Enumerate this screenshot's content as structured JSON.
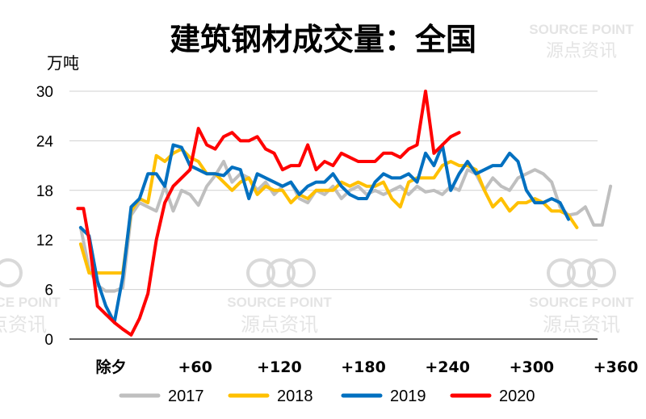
{
  "chart_data": {
    "type": "line",
    "title": "建筑钢材成交量：全国",
    "ylabel": "万吨",
    "ylim": [
      0,
      30
    ],
    "yticks": [
      0,
      6,
      12,
      18,
      24,
      30
    ],
    "xlim": [
      -32,
      362
    ],
    "xticks": [
      {
        "x": 0,
        "label": "除夕"
      },
      {
        "x": 60,
        "label": "+60"
      },
      {
        "x": 120,
        "label": "+120"
      },
      {
        "x": 180,
        "label": "+180"
      },
      {
        "x": 240,
        "label": "+240"
      },
      {
        "x": 300,
        "label": "+300"
      },
      {
        "x": 360,
        "label": "+360"
      }
    ],
    "grid": true,
    "legend": "bottom",
    "series": [
      {
        "name": "2017",
        "color": "#bfbfbf",
        "points": [
          [
            -24,
            13.5
          ],
          [
            -18,
            8.5
          ],
          [
            -12,
            6.5
          ],
          [
            -6,
            5.8
          ],
          [
            0,
            5.8
          ],
          [
            6,
            6.2
          ],
          [
            12,
            15.0
          ],
          [
            18,
            16.5
          ],
          [
            24,
            16.0
          ],
          [
            30,
            15.5
          ],
          [
            36,
            18.5
          ],
          [
            42,
            15.5
          ],
          [
            48,
            18.0
          ],
          [
            54,
            17.5
          ],
          [
            60,
            16.2
          ],
          [
            66,
            18.5
          ],
          [
            72,
            19.8
          ],
          [
            78,
            21.5
          ],
          [
            84,
            19.0
          ],
          [
            90,
            20.0
          ],
          [
            96,
            19.5
          ],
          [
            102,
            18.0
          ],
          [
            108,
            19.0
          ],
          [
            114,
            17.5
          ],
          [
            120,
            18.5
          ],
          [
            126,
            19.0
          ],
          [
            132,
            17.0
          ],
          [
            138,
            16.5
          ],
          [
            144,
            18.0
          ],
          [
            150,
            17.5
          ],
          [
            156,
            18.5
          ],
          [
            162,
            17.0
          ],
          [
            168,
            18.0
          ],
          [
            174,
            18.5
          ],
          [
            180,
            17.5
          ],
          [
            186,
            18.0
          ],
          [
            192,
            17.5
          ],
          [
            198,
            18.0
          ],
          [
            204,
            18.5
          ],
          [
            210,
            17.5
          ],
          [
            216,
            18.5
          ],
          [
            222,
            17.8
          ],
          [
            228,
            18.0
          ],
          [
            234,
            17.5
          ],
          [
            240,
            18.5
          ],
          [
            246,
            18.0
          ],
          [
            252,
            20.5
          ],
          [
            258,
            20.0
          ],
          [
            264,
            18.0
          ],
          [
            270,
            19.5
          ],
          [
            276,
            18.5
          ],
          [
            282,
            18.0
          ],
          [
            288,
            19.5
          ],
          [
            294,
            20.0
          ],
          [
            300,
            20.5
          ],
          [
            306,
            20.0
          ],
          [
            312,
            19.0
          ],
          [
            318,
            16.0
          ],
          [
            324,
            15.0
          ],
          [
            330,
            15.2
          ],
          [
            336,
            16.0
          ],
          [
            342,
            13.8
          ],
          [
            348,
            13.8
          ],
          [
            354,
            18.5
          ]
        ]
      },
      {
        "name": "2018",
        "color": "#ffc000",
        "points": [
          [
            -24,
            11.5
          ],
          [
            -18,
            8.0
          ],
          [
            -12,
            8.0
          ],
          [
            -6,
            8.0
          ],
          [
            0,
            8.0
          ],
          [
            6,
            8.0
          ],
          [
            12,
            15.5
          ],
          [
            18,
            17.0
          ],
          [
            24,
            16.5
          ],
          [
            30,
            22.2
          ],
          [
            36,
            21.5
          ],
          [
            42,
            22.5
          ],
          [
            48,
            23.0
          ],
          [
            54,
            22.0
          ],
          [
            60,
            21.5
          ],
          [
            66,
            20.0
          ],
          [
            72,
            20.0
          ],
          [
            78,
            19.0
          ],
          [
            84,
            18.0
          ],
          [
            90,
            19.0
          ],
          [
            96,
            19.5
          ],
          [
            102,
            17.5
          ],
          [
            108,
            18.5
          ],
          [
            114,
            18.0
          ],
          [
            120,
            18.0
          ],
          [
            126,
            16.5
          ],
          [
            132,
            17.5
          ],
          [
            138,
            17.0
          ],
          [
            144,
            18.0
          ],
          [
            150,
            18.0
          ],
          [
            156,
            18.0
          ],
          [
            162,
            19.0
          ],
          [
            168,
            18.5
          ],
          [
            174,
            19.0
          ],
          [
            180,
            18.5
          ],
          [
            186,
            18.5
          ],
          [
            192,
            19.0
          ],
          [
            198,
            17.0
          ],
          [
            204,
            16.0
          ],
          [
            210,
            19.0
          ],
          [
            216,
            19.5
          ],
          [
            222,
            19.5
          ],
          [
            228,
            19.5
          ],
          [
            234,
            21.0
          ],
          [
            240,
            21.5
          ],
          [
            246,
            21.0
          ],
          [
            252,
            21.0
          ],
          [
            258,
            20.5
          ],
          [
            264,
            18.0
          ],
          [
            270,
            16.0
          ],
          [
            276,
            17.0
          ],
          [
            282,
            15.5
          ],
          [
            288,
            16.5
          ],
          [
            294,
            16.5
          ],
          [
            300,
            17.0
          ],
          [
            306,
            16.5
          ],
          [
            312,
            15.5
          ],
          [
            318,
            15.5
          ],
          [
            324,
            15.0
          ],
          [
            330,
            13.5
          ]
        ]
      },
      {
        "name": "2019",
        "color": "#0070c0",
        "points": [
          [
            -24,
            13.5
          ],
          [
            -18,
            12.5
          ],
          [
            -12,
            7.0
          ],
          [
            -6,
            4.0
          ],
          [
            0,
            2.0
          ],
          [
            6,
            7.5
          ],
          [
            12,
            16.0
          ],
          [
            18,
            17.0
          ],
          [
            24,
            20.0
          ],
          [
            30,
            20.0
          ],
          [
            36,
            18.5
          ],
          [
            42,
            23.5
          ],
          [
            48,
            23.2
          ],
          [
            54,
            21.0
          ],
          [
            60,
            20.5
          ],
          [
            66,
            20.0
          ],
          [
            72,
            20.0
          ],
          [
            78,
            19.8
          ],
          [
            84,
            20.8
          ],
          [
            90,
            20.5
          ],
          [
            96,
            17.0
          ],
          [
            102,
            20.0
          ],
          [
            108,
            19.5
          ],
          [
            114,
            19.0
          ],
          [
            120,
            18.5
          ],
          [
            126,
            19.0
          ],
          [
            132,
            17.5
          ],
          [
            138,
            18.5
          ],
          [
            144,
            19.0
          ],
          [
            150,
            19.0
          ],
          [
            156,
            20.0
          ],
          [
            162,
            18.5
          ],
          [
            168,
            17.5
          ],
          [
            174,
            17.0
          ],
          [
            180,
            17.0
          ],
          [
            186,
            19.0
          ],
          [
            192,
            20.0
          ],
          [
            198,
            19.5
          ],
          [
            204,
            19.5
          ],
          [
            210,
            20.0
          ],
          [
            216,
            19.0
          ],
          [
            222,
            22.5
          ],
          [
            228,
            21.0
          ],
          [
            234,
            23.5
          ],
          [
            240,
            18.0
          ],
          [
            246,
            20.0
          ],
          [
            252,
            21.5
          ],
          [
            258,
            20.0
          ],
          [
            264,
            20.5
          ],
          [
            270,
            21.0
          ],
          [
            276,
            21.0
          ],
          [
            282,
            22.5
          ],
          [
            288,
            21.5
          ],
          [
            294,
            18.0
          ],
          [
            300,
            16.5
          ],
          [
            306,
            16.5
          ],
          [
            312,
            17.0
          ],
          [
            318,
            16.5
          ],
          [
            324,
            14.5
          ]
        ]
      },
      {
        "name": "2020",
        "color": "#ff0000",
        "points": [
          [
            -26,
            15.8
          ],
          [
            -22,
            15.8
          ],
          [
            -18,
            12.0
          ],
          [
            -12,
            4.0
          ],
          [
            -6,
            3.0
          ],
          [
            0,
            2.0
          ],
          [
            6,
            1.2
          ],
          [
            12,
            0.5
          ],
          [
            18,
            2.5
          ],
          [
            24,
            5.5
          ],
          [
            30,
            12.0
          ],
          [
            36,
            16.5
          ],
          [
            42,
            18.5
          ],
          [
            48,
            19.5
          ],
          [
            54,
            20.5
          ],
          [
            60,
            25.5
          ],
          [
            66,
            23.5
          ],
          [
            72,
            23.0
          ],
          [
            78,
            24.5
          ],
          [
            84,
            25.0
          ],
          [
            90,
            24.0
          ],
          [
            96,
            24.0
          ],
          [
            102,
            24.5
          ],
          [
            108,
            23.0
          ],
          [
            114,
            22.5
          ],
          [
            120,
            20.5
          ],
          [
            126,
            21.0
          ],
          [
            132,
            21.0
          ],
          [
            138,
            23.5
          ],
          [
            144,
            20.5
          ],
          [
            150,
            21.5
          ],
          [
            156,
            21.0
          ],
          [
            162,
            22.5
          ],
          [
            168,
            22.0
          ],
          [
            174,
            21.5
          ],
          [
            180,
            21.5
          ],
          [
            186,
            21.5
          ],
          [
            192,
            22.5
          ],
          [
            198,
            22.5
          ],
          [
            204,
            22.0
          ],
          [
            210,
            23.0
          ],
          [
            216,
            23.5
          ],
          [
            222,
            30.0
          ],
          [
            228,
            22.5
          ],
          [
            234,
            23.5
          ],
          [
            240,
            24.5
          ],
          [
            246,
            25.0
          ]
        ]
      }
    ]
  },
  "watermark": {
    "brand": "SOURCE POINT",
    "brand_cn": "源点资讯"
  }
}
